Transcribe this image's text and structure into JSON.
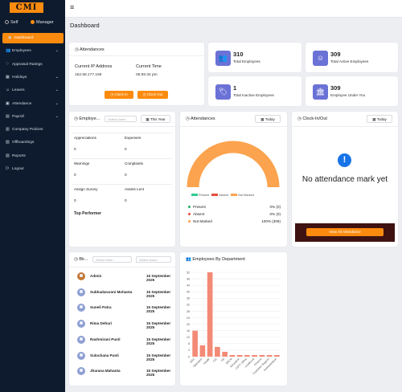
{
  "logo_text": "CMI",
  "roles": {
    "self": "Self",
    "manager": "Manager"
  },
  "nav": [
    {
      "label": "Dashboard",
      "icon": "dashboard-icon",
      "glyph": "◉",
      "active": true,
      "chev": false
    },
    {
      "label": "Employees",
      "icon": "employees-icon",
      "glyph": "👥",
      "active": false,
      "chev": true
    },
    {
      "label": "Appraisal Ratings",
      "icon": "heart-icon",
      "glyph": "♡",
      "active": false,
      "chev": false
    },
    {
      "label": "Holidays",
      "icon": "calendar-icon",
      "glyph": "▦",
      "active": false,
      "chev": true
    },
    {
      "label": "Leaves",
      "icon": "leaves-icon",
      "glyph": "☺",
      "active": false,
      "chev": true
    },
    {
      "label": "Attendance",
      "icon": "attendance-icon",
      "glyph": "▣",
      "active": false,
      "chev": true
    },
    {
      "label": "Payroll",
      "icon": "payroll-icon",
      "glyph": "▤",
      "active": false,
      "chev": true
    },
    {
      "label": "Company Policies",
      "icon": "policies-icon",
      "glyph": "▥",
      "active": false,
      "chev": false
    },
    {
      "label": "Offboardings",
      "icon": "offboarding-icon",
      "glyph": "▧",
      "active": false,
      "chev": false
    },
    {
      "label": "Reports",
      "icon": "reports-icon",
      "glyph": "▨",
      "active": false,
      "chev": false
    },
    {
      "label": "Logout",
      "icon": "logout-icon",
      "glyph": "⏻",
      "active": false,
      "chev": false
    }
  ],
  "page_title": "Dashboard",
  "attendance_card": {
    "title": "Attendances",
    "ip_label": "Current IP Address",
    "ip_value": "152.58.177.159",
    "time_label": "Current Time",
    "time_value": "05:55:34 pm",
    "clock_in": "Clock In",
    "clock_out": "Clock Out"
  },
  "stats": [
    {
      "value": "310",
      "label": "Total Employees",
      "icon": "users-icon",
      "glyph": "👥"
    },
    {
      "value": "309",
      "label": "Total Active Employees",
      "icon": "smile-icon",
      "glyph": "☺"
    },
    {
      "value": "1",
      "label": "Total Inactive Employees",
      "icon": "tag-icon",
      "glyph": "🏷"
    },
    {
      "value": "309",
      "label": "Employee Under You",
      "icon": "bank-icon",
      "glyph": "🏛"
    }
  ],
  "employee_card": {
    "title": "Employe...",
    "select_placeholder": "Select Users",
    "period": "This Year",
    "rows": [
      {
        "label": "Appreciations",
        "value": "0"
      },
      {
        "label": "Expenses",
        "value": "0"
      },
      {
        "label": "Warnings",
        "value": "0"
      },
      {
        "label": "Complaints",
        "value": "0"
      },
      {
        "label": "Assign Survey",
        "value": "0"
      },
      {
        "label": "Assets Lent",
        "value": "0"
      }
    ],
    "top_performer": "Top Performer"
  },
  "attendances_chart": {
    "title": "Attendances",
    "period": "Today",
    "legend": [
      "Present",
      "Absent",
      "Not Marked"
    ],
    "items": [
      {
        "label": "Present",
        "value": "0% (0)",
        "color": "#27ae60"
      },
      {
        "label": "Absent",
        "value": "0% (0)",
        "color": "#e74c3c"
      },
      {
        "label": "Not Marked",
        "value": "100% (309)",
        "color": "#fba34e"
      }
    ],
    "colors": {
      "present": "#2ecc8f",
      "absent": "#e74c3c",
      "not_marked": "#fba34e"
    }
  },
  "clock_card": {
    "title": "Clock-In/Out",
    "period": "Today",
    "message": "No attendance mark yet",
    "button": "View All Attendance",
    "info_icon": "info-icon"
  },
  "birthday_card": {
    "title": "Bir...",
    "select_date": "Select Date...",
    "select_users": "Select Users",
    "people": [
      {
        "name": "Admin",
        "date": "15 September 2025",
        "photo": true
      },
      {
        "name": "Subhadararani Mohanta",
        "date": "15 September 2025",
        "photo": false
      },
      {
        "name": "Suneli Patra",
        "date": "15 September 2025",
        "photo": false
      },
      {
        "name": "Rima Dehuri",
        "date": "15 September 2025",
        "photo": false
      },
      {
        "name": "Rashmirani Pusti",
        "date": "15 September 2025",
        "photo": false
      },
      {
        "name": "Sulochana Pusti",
        "date": "15 September 2025",
        "photo": false
      },
      {
        "name": "Jharana Mahanta",
        "date": "15 September 2025",
        "photo": false
      }
    ]
  },
  "chart_data": {
    "type": "bar",
    "title": "Employees By Department",
    "categories": [
      "GEC",
      "Operation",
      "Health",
      "CIC",
      "HR",
      "NRLM",
      "Education",
      "CSTY Office",
      "Livelihood",
      "Finance",
      "Customer Support",
      "Administration"
    ],
    "values": [
      16,
      7,
      52,
      6,
      3,
      1,
      1,
      1,
      1,
      1,
      1,
      1
    ],
    "ylim": [
      0,
      52
    ],
    "yticks": [
      "52",
      "48",
      "44",
      "40",
      "36",
      "32",
      "28",
      "24",
      "20",
      "16",
      "12",
      "8",
      "4",
      "0"
    ],
    "bar_color": "#f38a76"
  }
}
